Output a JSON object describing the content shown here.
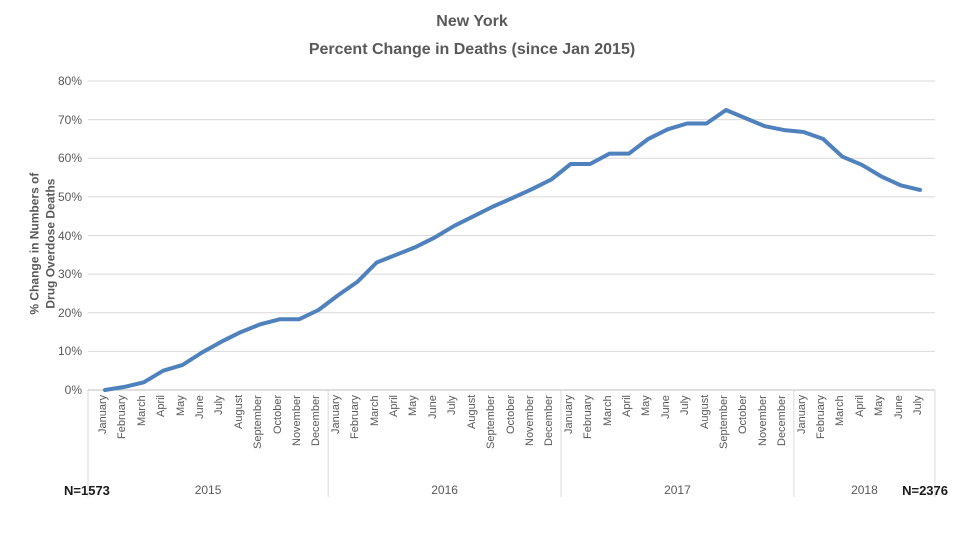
{
  "chart_data": {
    "type": "line",
    "title": [
      "New York",
      "Percent Change in Deaths (since Jan 2015)"
    ],
    "ylabel": [
      "% Change in Numbers of",
      "Drug Overdose Deaths"
    ],
    "ylim": [
      0,
      80
    ],
    "ytick_labels": [
      "0%",
      "10%",
      "20%",
      "30%",
      "40%",
      "50%",
      "60%",
      "70%",
      "80%"
    ],
    "grid": true,
    "legend": "none",
    "groups": [
      {
        "year": "2015",
        "months": [
          "January",
          "February",
          "March",
          "April",
          "May",
          "June",
          "July",
          "August",
          "September",
          "October",
          "November",
          "December"
        ],
        "values": [
          0,
          0.8,
          2,
          5,
          6.5,
          9.7,
          12.5,
          15,
          17,
          18.3,
          18.3,
          20.7
        ]
      },
      {
        "year": "2016",
        "months": [
          "January",
          "February",
          "March",
          "April",
          "May",
          "June",
          "July",
          "August",
          "September",
          "October",
          "November",
          "December"
        ],
        "values": [
          24.5,
          28,
          33,
          35,
          37,
          39.5,
          42.5,
          45,
          47.5,
          49.7,
          52,
          54.5
        ]
      },
      {
        "year": "2017",
        "months": [
          "January",
          "February",
          "March",
          "April",
          "May",
          "June",
          "July",
          "August",
          "September",
          "October",
          "November",
          "December"
        ],
        "values": [
          58.5,
          58.5,
          61.2,
          61.2,
          65,
          67.5,
          69,
          69,
          72.5,
          70.4,
          68.3,
          67.3
        ]
      },
      {
        "year": "2018",
        "months": [
          "January",
          "February",
          "March",
          "April",
          "May",
          "June",
          "July"
        ],
        "values": [
          66.8,
          65,
          60.4,
          58.3,
          55.3,
          53,
          51.8
        ]
      }
    ],
    "annotations": {
      "n_left": "N=1573",
      "n_right": "N=2376"
    }
  },
  "colors": {
    "line": "#4f81bd",
    "gridline": "#d9d9d9",
    "axis_line": "#bfbfbf",
    "separator": "#d9d9d9",
    "title_text": "#595959",
    "axis_text": "#595959",
    "n_text": "#1a1a1a"
  }
}
